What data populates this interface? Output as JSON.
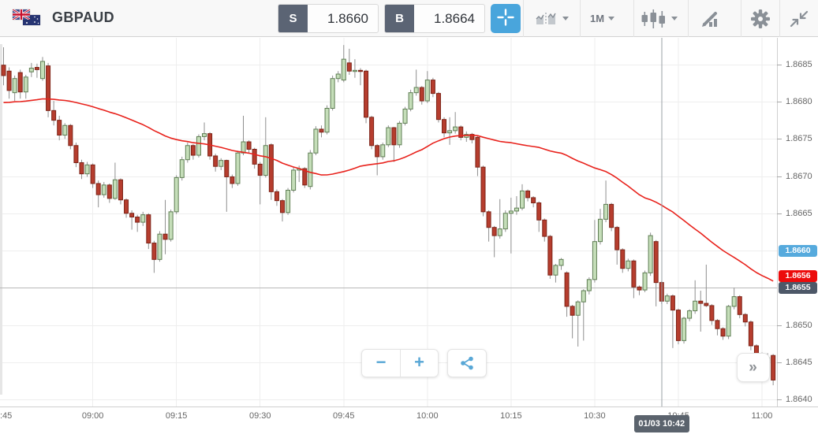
{
  "header": {
    "symbol": "GBPAUD",
    "flags": [
      "uk-flag",
      "australia-flag"
    ],
    "sell": {
      "label": "S",
      "price": "1.8660"
    },
    "buy": {
      "label": "B",
      "price": "1.8664"
    },
    "toolbar": {
      "timeframe": "1M",
      "icons": [
        "crosshair-icon",
        "compare-charts-icon",
        "timeframe-dropdown",
        "chart-type-candles-icon",
        "draw-tools-icon",
        "settings-gear-icon",
        "collapse-icon"
      ]
    }
  },
  "controls": {
    "zoom_out": "−",
    "zoom_in": "+",
    "share": "share-icon",
    "jump_to_latest": "»"
  },
  "chart_data": {
    "type": "candlestick",
    "symbol": "GBPAUD",
    "interval": "1M",
    "start_time": "08:44",
    "minutes_per_candle": 1,
    "grid": true,
    "ylim": [
      1.8638,
      1.8689
    ],
    "x_ticks": [
      {
        "label": ":45",
        "minute": 1
      },
      {
        "label": "09:00",
        "minute": 16
      },
      {
        "label": "09:15",
        "minute": 31
      },
      {
        "label": "09:30",
        "minute": 46
      },
      {
        "label": "09:45",
        "minute": 61
      },
      {
        "label": "10:00",
        "minute": 76
      },
      {
        "label": "10:15",
        "minute": 91
      },
      {
        "label": "10:30",
        "minute": 106
      },
      {
        "label": "10:45",
        "minute": 121
      },
      {
        "label": "11:00",
        "minute": 136
      }
    ],
    "y_ticks": [
      1.8685,
      1.868,
      1.8675,
      1.867,
      1.8665,
      1.866,
      1.8655,
      1.865,
      1.8645,
      1.864
    ],
    "colors": {
      "up_fill": "#c5deb9",
      "up_border": "#5e7d53",
      "down_fill": "#b63d2e",
      "down_border": "#7c2317",
      "wick": "#8f8f8f",
      "grid": "#eeeeee"
    },
    "moving_average": {
      "window": 50,
      "seed": 1.86798,
      "color": "#e8221c",
      "last_value_badge": "1.8656",
      "badge_color": "#ec0b0b"
    },
    "level_line": {
      "value": 1.8655,
      "badge": "1.8655",
      "line_color": "#b8b8b8",
      "badge_color": "#4d5868"
    },
    "bid_badge": {
      "value": "1.8660",
      "price": 1.866,
      "badge_color": "#56aadd"
    },
    "crosshair": {
      "minute": 118,
      "tooltip": "01/03 10:42",
      "line_color": "#9aa0a5"
    },
    "candles": [
      [
        1.86849,
        1.86873,
        1.86822,
        1.86835
      ],
      [
        1.86841,
        1.86846,
        1.86804,
        1.86815
      ],
      [
        1.86812,
        1.86835,
        1.86801,
        1.86831
      ],
      [
        1.86839,
        1.86843,
        1.86804,
        1.86813
      ],
      [
        1.86813,
        1.86836,
        1.86804,
        1.86833
      ],
      [
        1.8684,
        1.86852,
        1.86833,
        1.86845
      ],
      [
        1.86846,
        1.86851,
        1.86832,
        1.86843
      ],
      [
        1.86831,
        1.8686,
        1.86828,
        1.86854
      ],
      [
        1.86848,
        1.86852,
        1.86779,
        1.86788
      ],
      [
        1.86788,
        1.86801,
        1.86768,
        1.86775
      ],
      [
        1.86775,
        1.86781,
        1.86748,
        1.86755
      ],
      [
        1.86755,
        1.86771,
        1.8675,
        1.86768
      ],
      [
        1.86768,
        1.8677,
        1.86736,
        1.86741
      ],
      [
        1.86741,
        1.86745,
        1.86712,
        1.86718
      ],
      [
        1.86718,
        1.86722,
        1.86696,
        1.86703
      ],
      [
        1.86703,
        1.86719,
        1.86699,
        1.86715
      ],
      [
        1.86715,
        1.86717,
        1.86684,
        1.8669
      ],
      [
        1.8669,
        1.86694,
        1.86658,
        1.86675
      ],
      [
        1.86675,
        1.86692,
        1.86671,
        1.86688
      ],
      [
        1.86688,
        1.8669,
        1.86664,
        1.8667
      ],
      [
        1.8667,
        1.86718,
        1.86668,
        1.86695
      ],
      [
        1.86695,
        1.86697,
        1.86662,
        1.86668
      ],
      [
        1.86668,
        1.8667,
        1.86644,
        1.8665
      ],
      [
        1.8665,
        1.86654,
        1.86628,
        1.86645
      ],
      [
        1.86645,
        1.86648,
        1.86625,
        1.86638
      ],
      [
        1.86638,
        1.86652,
        1.86633,
        1.86648
      ],
      [
        1.86648,
        1.8665,
        1.86602,
        1.8661
      ],
      [
        1.8661,
        1.86613,
        1.8657,
        1.86588
      ],
      [
        1.86588,
        1.86626,
        1.86585,
        1.86622
      ],
      [
        1.86622,
        1.86668,
        1.86595,
        1.86615
      ],
      [
        1.86615,
        1.86655,
        1.86612,
        1.86652
      ],
      [
        1.86652,
        1.86701,
        1.86649,
        1.86698
      ],
      [
        1.86698,
        1.86726,
        1.86694,
        1.86722
      ],
      [
        1.86722,
        1.86745,
        1.86718,
        1.86741
      ],
      [
        1.86741,
        1.86743,
        1.86722,
        1.86728
      ],
      [
        1.86728,
        1.86756,
        1.86725,
        1.86753
      ],
      [
        1.86753,
        1.86772,
        1.86748,
        1.86757
      ],
      [
        1.86757,
        1.86759,
        1.86722,
        1.86727
      ],
      [
        1.86727,
        1.8673,
        1.86706,
        1.86713
      ],
      [
        1.86713,
        1.86724,
        1.86708,
        1.86721
      ],
      [
        1.86721,
        1.86722,
        1.86652,
        1.86699
      ],
      [
        1.86699,
        1.86702,
        1.86684,
        1.8669
      ],
      [
        1.8669,
        1.86734,
        1.86687,
        1.86731
      ],
      [
        1.86731,
        1.86781,
        1.86728,
        1.86746
      ],
      [
        1.86746,
        1.86748,
        1.8673,
        1.86736
      ],
      [
        1.86736,
        1.86738,
        1.8671,
        1.86716
      ],
      [
        1.86716,
        1.86719,
        1.86662,
        1.86701
      ],
      [
        1.86701,
        1.86779,
        1.86698,
        1.86741
      ],
      [
        1.86742,
        1.86744,
        1.86668,
        1.86679
      ],
      [
        1.86679,
        1.86682,
        1.8666,
        1.86667
      ],
      [
        1.86667,
        1.86669,
        1.86639,
        1.86651
      ],
      [
        1.86651,
        1.86684,
        1.86648,
        1.86681
      ],
      [
        1.86681,
        1.86712,
        1.86678,
        1.86708
      ],
      [
        1.86708,
        1.86714,
        1.86692,
        1.8671
      ],
      [
        1.8671,
        1.86712,
        1.86684,
        1.86688
      ],
      [
        1.86686,
        1.86735,
        1.86682,
        1.86731
      ],
      [
        1.86731,
        1.86767,
        1.86728,
        1.86763
      ],
      [
        1.86763,
        1.86768,
        1.86752,
        1.86759
      ],
      [
        1.86759,
        1.86795,
        1.86756,
        1.86791
      ],
      [
        1.86791,
        1.86835,
        1.86788,
        1.86831
      ],
      [
        1.86831,
        1.86841,
        1.86826,
        1.86837
      ],
      [
        1.86829,
        1.86876,
        1.86826,
        1.86857
      ],
      [
        1.86852,
        1.86871,
        1.86836,
        1.86841
      ],
      [
        1.86841,
        1.86857,
        1.86832,
        1.86842
      ],
      [
        1.86842,
        1.86845,
        1.86822,
        1.86841
      ],
      [
        1.86841,
        1.86843,
        1.86771,
        1.86779
      ],
      [
        1.86779,
        1.86781,
        1.86736,
        1.86741
      ],
      [
        1.86741,
        1.86743,
        1.86701,
        1.86726
      ],
      [
        1.86726,
        1.86745,
        1.86722,
        1.86742
      ],
      [
        1.86742,
        1.86768,
        1.86739,
        1.86765
      ],
      [
        1.86765,
        1.86766,
        1.86719,
        1.86742
      ],
      [
        1.86742,
        1.86774,
        1.86738,
        1.86771
      ],
      [
        1.86771,
        1.86793,
        1.86768,
        1.8679
      ],
      [
        1.8679,
        1.86816,
        1.86787,
        1.86812
      ],
      [
        1.86812,
        1.86843,
        1.86808,
        1.86819
      ],
      [
        1.86819,
        1.86821,
        1.86796,
        1.86801
      ],
      [
        1.86801,
        1.86841,
        1.86798,
        1.86829
      ],
      [
        1.86829,
        1.86832,
        1.86806,
        1.86811
      ],
      [
        1.86811,
        1.86813,
        1.86772,
        1.86776
      ],
      [
        1.86776,
        1.86779,
        1.86752,
        1.86758
      ],
      [
        1.86758,
        1.86779,
        1.86742,
        1.86761
      ],
      [
        1.86761,
        1.86786,
        1.86757,
        1.86766
      ],
      [
        1.86766,
        1.86768,
        1.86748,
        1.86752
      ],
      [
        1.86752,
        1.8676,
        1.86746,
        1.86756
      ],
      [
        1.86756,
        1.86758,
        1.86744,
        1.86749
      ],
      [
        1.86752,
        1.86754,
        1.867,
        1.86712
      ],
      [
        1.86712,
        1.86714,
        1.86646,
        1.86652
      ],
      [
        1.86652,
        1.86654,
        1.86612,
        1.86631
      ],
      [
        1.86631,
        1.86633,
        1.86591,
        1.8662
      ],
      [
        1.8662,
        1.86669,
        1.86616,
        1.86629
      ],
      [
        1.86629,
        1.86654,
        1.86625,
        1.8665
      ],
      [
        1.8665,
        1.86671,
        1.86596,
        1.86653
      ],
      [
        1.86653,
        1.86673,
        1.86648,
        1.86657
      ],
      [
        1.86657,
        1.86689,
        1.86654,
        1.8668
      ],
      [
        1.8668,
        1.86682,
        1.86666,
        1.86671
      ],
      [
        1.86671,
        1.86673,
        1.86658,
        1.86664
      ],
      [
        1.86664,
        1.86666,
        1.86625,
        1.86641
      ],
      [
        1.86641,
        1.86643,
        1.86612,
        1.86619
      ],
      [
        1.86619,
        1.86621,
        1.86562,
        1.86567
      ],
      [
        1.86567,
        1.86582,
        1.86557,
        1.8658
      ],
      [
        1.8658,
        1.8659,
        1.86574,
        1.86588
      ],
      [
        1.8657,
        1.86572,
        1.86511,
        1.86525
      ],
      [
        1.86525,
        1.86527,
        1.86482,
        1.86513
      ],
      [
        1.86513,
        1.86533,
        1.86471,
        1.86531
      ],
      [
        1.86531,
        1.86548,
        1.86479,
        1.86546
      ],
      [
        1.86546,
        1.86564,
        1.86541,
        1.86561
      ],
      [
        1.86561,
        1.86641,
        1.86557,
        1.86612
      ],
      [
        1.86612,
        1.86656,
        1.86608,
        1.86642
      ],
      [
        1.86642,
        1.86694,
        1.86638,
        1.86662
      ],
      [
        1.86662,
        1.86664,
        1.86626,
        1.86631
      ],
      [
        1.86631,
        1.86633,
        1.86581,
        1.86601
      ],
      [
        1.86601,
        1.86603,
        1.8657,
        1.86576
      ],
      [
        1.86576,
        1.86589,
        1.86572,
        1.86586
      ],
      [
        1.86586,
        1.86588,
        1.86536,
        1.86551
      ],
      [
        1.86551,
        1.86553,
        1.8654,
        1.86547
      ],
      [
        1.86547,
        1.86573,
        1.86544,
        1.8657
      ],
      [
        1.8657,
        1.86624,
        1.86566,
        1.8662
      ],
      [
        1.86612,
        1.86614,
        1.86525,
        1.86557
      ],
      [
        1.86557,
        1.86559,
        1.86528,
        1.86532
      ],
      [
        1.86532,
        1.86542,
        1.86528,
        1.86539
      ],
      [
        1.86539,
        1.86541,
        1.86469,
        1.8652
      ],
      [
        1.8652,
        1.86522,
        1.86474,
        1.86479
      ],
      [
        1.86479,
        1.86511,
        1.86475,
        1.86509
      ],
      [
        1.86509,
        1.86521,
        1.86505,
        1.86519
      ],
      [
        1.86519,
        1.8656,
        1.86515,
        1.86532
      ],
      [
        1.86532,
        1.86546,
        1.86491,
        1.86529
      ],
      [
        1.86529,
        1.86581,
        1.86524,
        1.86526
      ],
      [
        1.86526,
        1.86528,
        1.865,
        1.86506
      ],
      [
        1.86506,
        1.86508,
        1.86486,
        1.86495
      ],
      [
        1.86495,
        1.86497,
        1.8648,
        1.86485
      ],
      [
        1.86485,
        1.86527,
        1.86481,
        1.86525
      ],
      [
        1.86525,
        1.8655,
        1.86521,
        1.86538
      ],
      [
        1.86538,
        1.8654,
        1.86509,
        1.86514
      ],
      [
        1.86514,
        1.86516,
        1.86498,
        1.86504
      ],
      [
        1.86504,
        1.86506,
        1.86466,
        1.86472
      ],
      [
        1.86472,
        1.86474,
        1.86455,
        1.86461
      ],
      [
        1.86461,
        1.86463,
        1.86441,
        1.86451
      ],
      [
        1.86451,
        1.86462,
        1.86446,
        1.86456
      ],
      [
        1.86459,
        1.86461,
        1.86419,
        1.86426
      ]
    ]
  }
}
